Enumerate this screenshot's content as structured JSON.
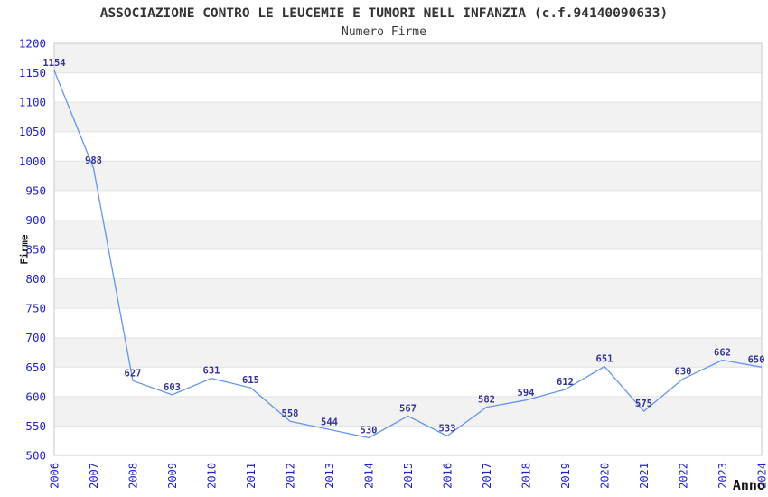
{
  "chart_data": {
    "type": "line",
    "title": "ASSOCIAZIONE CONTRO LE LEUCEMIE E TUMORI NELL INFANZIA (c.f.94140090633)",
    "subtitle": "Numero Firme",
    "xlabel": "Anno",
    "ylabel": "Firme",
    "x": [
      "2006",
      "2007",
      "2008",
      "2009",
      "2010",
      "2011",
      "2012",
      "2013",
      "2014",
      "2015",
      "2016",
      "2017",
      "2018",
      "2019",
      "2020",
      "2021",
      "2022",
      "2023",
      "2024"
    ],
    "series": [
      {
        "name": "Numero Firme",
        "values": [
          1154,
          988,
          627,
          603,
          631,
          615,
          558,
          544,
          530,
          567,
          533,
          582,
          594,
          612,
          651,
          575,
          630,
          662,
          650
        ]
      }
    ],
    "ylim": [
      500,
      1200
    ],
    "ytick_step": 50,
    "yticks": [
      500,
      550,
      600,
      650,
      700,
      750,
      800,
      850,
      900,
      950,
      1000,
      1050,
      1100,
      1150,
      1200
    ],
    "grid": true,
    "legend": "none",
    "band_pattern": "alternating gray/white, gray at top",
    "colors": {
      "line": "#6495ED",
      "tick_label": "#2222cc",
      "data_label": "#333399",
      "band": "#f2f2f2",
      "gridline": "#e2e2e2",
      "border": "#c8c8c8",
      "title": "#333333",
      "axis_title": "#111111"
    }
  }
}
